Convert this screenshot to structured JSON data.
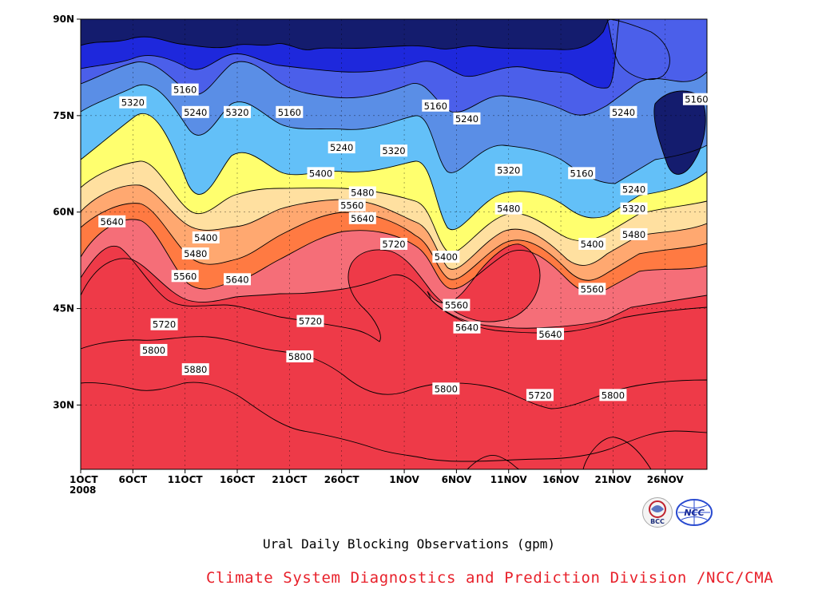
{
  "chart_data": {
    "type": "contour",
    "title": "",
    "xlabel": "",
    "ylabel": "",
    "x_ticks": [
      "1OCT",
      "6OCT",
      "11OCT",
      "16OCT",
      "21OCT",
      "26OCT",
      "1NOV",
      "6NOV",
      "11NOV",
      "16NOV",
      "21NOV",
      "26NOV"
    ],
    "x_tick_year": "2008",
    "x_range": [
      "2008-10-01",
      "2008-11-30"
    ],
    "y_ticks": [
      "30N",
      "45N",
      "60N",
      "75N",
      "90N"
    ],
    "ylim": [
      20,
      90
    ],
    "contour_levels": [
      5160,
      5240,
      5320,
      5400,
      5480,
      5560,
      5640,
      5720,
      5800,
      5880
    ],
    "series": [
      {
        "values": [
          "#141c6e",
          "#1e28dc",
          "#4b5fea",
          "#5a8ee6",
          "#63c0f8",
          "#ffff6e",
          "#ffe0a0",
          "#ffa870",
          "#ff7a42",
          "#f56e78",
          "#ee3a48"
        ]
      }
    ],
    "contour_labels": [
      {
        "text": "5160",
        "x": "2008-10-11",
        "y": 79
      },
      {
        "text": "5320",
        "x": "2008-10-06",
        "y": 77
      },
      {
        "text": "5240",
        "x": "2008-10-12",
        "y": 75.5
      },
      {
        "text": "5320",
        "x": "2008-10-16",
        "y": 75.5
      },
      {
        "text": "5160",
        "x": "2008-10-21",
        "y": 75.5
      },
      {
        "text": "5160",
        "x": "2008-11-04",
        "y": 76.5
      },
      {
        "text": "5240",
        "x": "2008-11-07",
        "y": 74.5
      },
      {
        "text": "5240",
        "x": "2008-10-26",
        "y": 70
      },
      {
        "text": "5320",
        "x": "2008-10-31",
        "y": 69.5
      },
      {
        "text": "5400",
        "x": "2008-10-24",
        "y": 66
      },
      {
        "text": "5480",
        "x": "2008-10-28",
        "y": 63
      },
      {
        "text": "5560",
        "x": "2008-10-27",
        "y": 61
      },
      {
        "text": "5640",
        "x": "2008-10-28",
        "y": 59
      },
      {
        "text": "5720",
        "x": "2008-10-31",
        "y": 55
      },
      {
        "text": "5640",
        "x": "2008-10-04",
        "y": 58.5
      },
      {
        "text": "5400",
        "x": "2008-10-13",
        "y": 56
      },
      {
        "text": "5480",
        "x": "2008-10-12",
        "y": 53.5
      },
      {
        "text": "5560",
        "x": "2008-10-11",
        "y": 50
      },
      {
        "text": "5640",
        "x": "2008-10-16",
        "y": 49.5
      },
      {
        "text": "5720",
        "x": "2008-10-09",
        "y": 42.5
      },
      {
        "text": "5720",
        "x": "2008-10-23",
        "y": 43
      },
      {
        "text": "5800",
        "x": "2008-10-08",
        "y": 38.5
      },
      {
        "text": "5800",
        "x": "2008-10-22",
        "y": 37.5
      },
      {
        "text": "5880",
        "x": "2008-10-12",
        "y": 35.5
      },
      {
        "text": "5320",
        "x": "2008-11-11",
        "y": 66.5
      },
      {
        "text": "5480",
        "x": "2008-11-11",
        "y": 60.5
      },
      {
        "text": "5400",
        "x": "2008-11-05",
        "y": 53
      },
      {
        "text": "5560",
        "x": "2008-11-06",
        "y": 45.5
      },
      {
        "text": "5640",
        "x": "2008-11-07",
        "y": 42
      },
      {
        "text": "5800",
        "x": "2008-11-05",
        "y": 32.5
      },
      {
        "text": "5720",
        "x": "2008-11-14",
        "y": 31.5
      },
      {
        "text": "5160",
        "x": "2008-11-18",
        "y": 66
      },
      {
        "text": "5240",
        "x": "2008-11-23",
        "y": 63.5
      },
      {
        "text": "5320",
        "x": "2008-11-23",
        "y": 60.5
      },
      {
        "text": "5480",
        "x": "2008-11-23",
        "y": 56.5
      },
      {
        "text": "5400",
        "x": "2008-11-19",
        "y": 55
      },
      {
        "text": "5560",
        "x": "2008-11-19",
        "y": 48
      },
      {
        "text": "5640",
        "x": "2008-11-15",
        "y": 41
      },
      {
        "text": "5800",
        "x": "2008-11-21",
        "y": 31.5
      },
      {
        "text": "5240",
        "x": "2008-11-22",
        "y": 75.5
      },
      {
        "text": "5160",
        "x": "2008-11-29",
        "y": 77.5
      }
    ]
  },
  "footer": {
    "title": "Ural Daily Blocking Observations (gpm)",
    "credit": "Climate System Diagnostics and Prediction Division /NCC/CMA"
  },
  "logos": [
    {
      "icon": "bcc-logo-icon",
      "text": "BCC"
    },
    {
      "icon": "ncc-logo-icon",
      "text": "NCC"
    }
  ]
}
